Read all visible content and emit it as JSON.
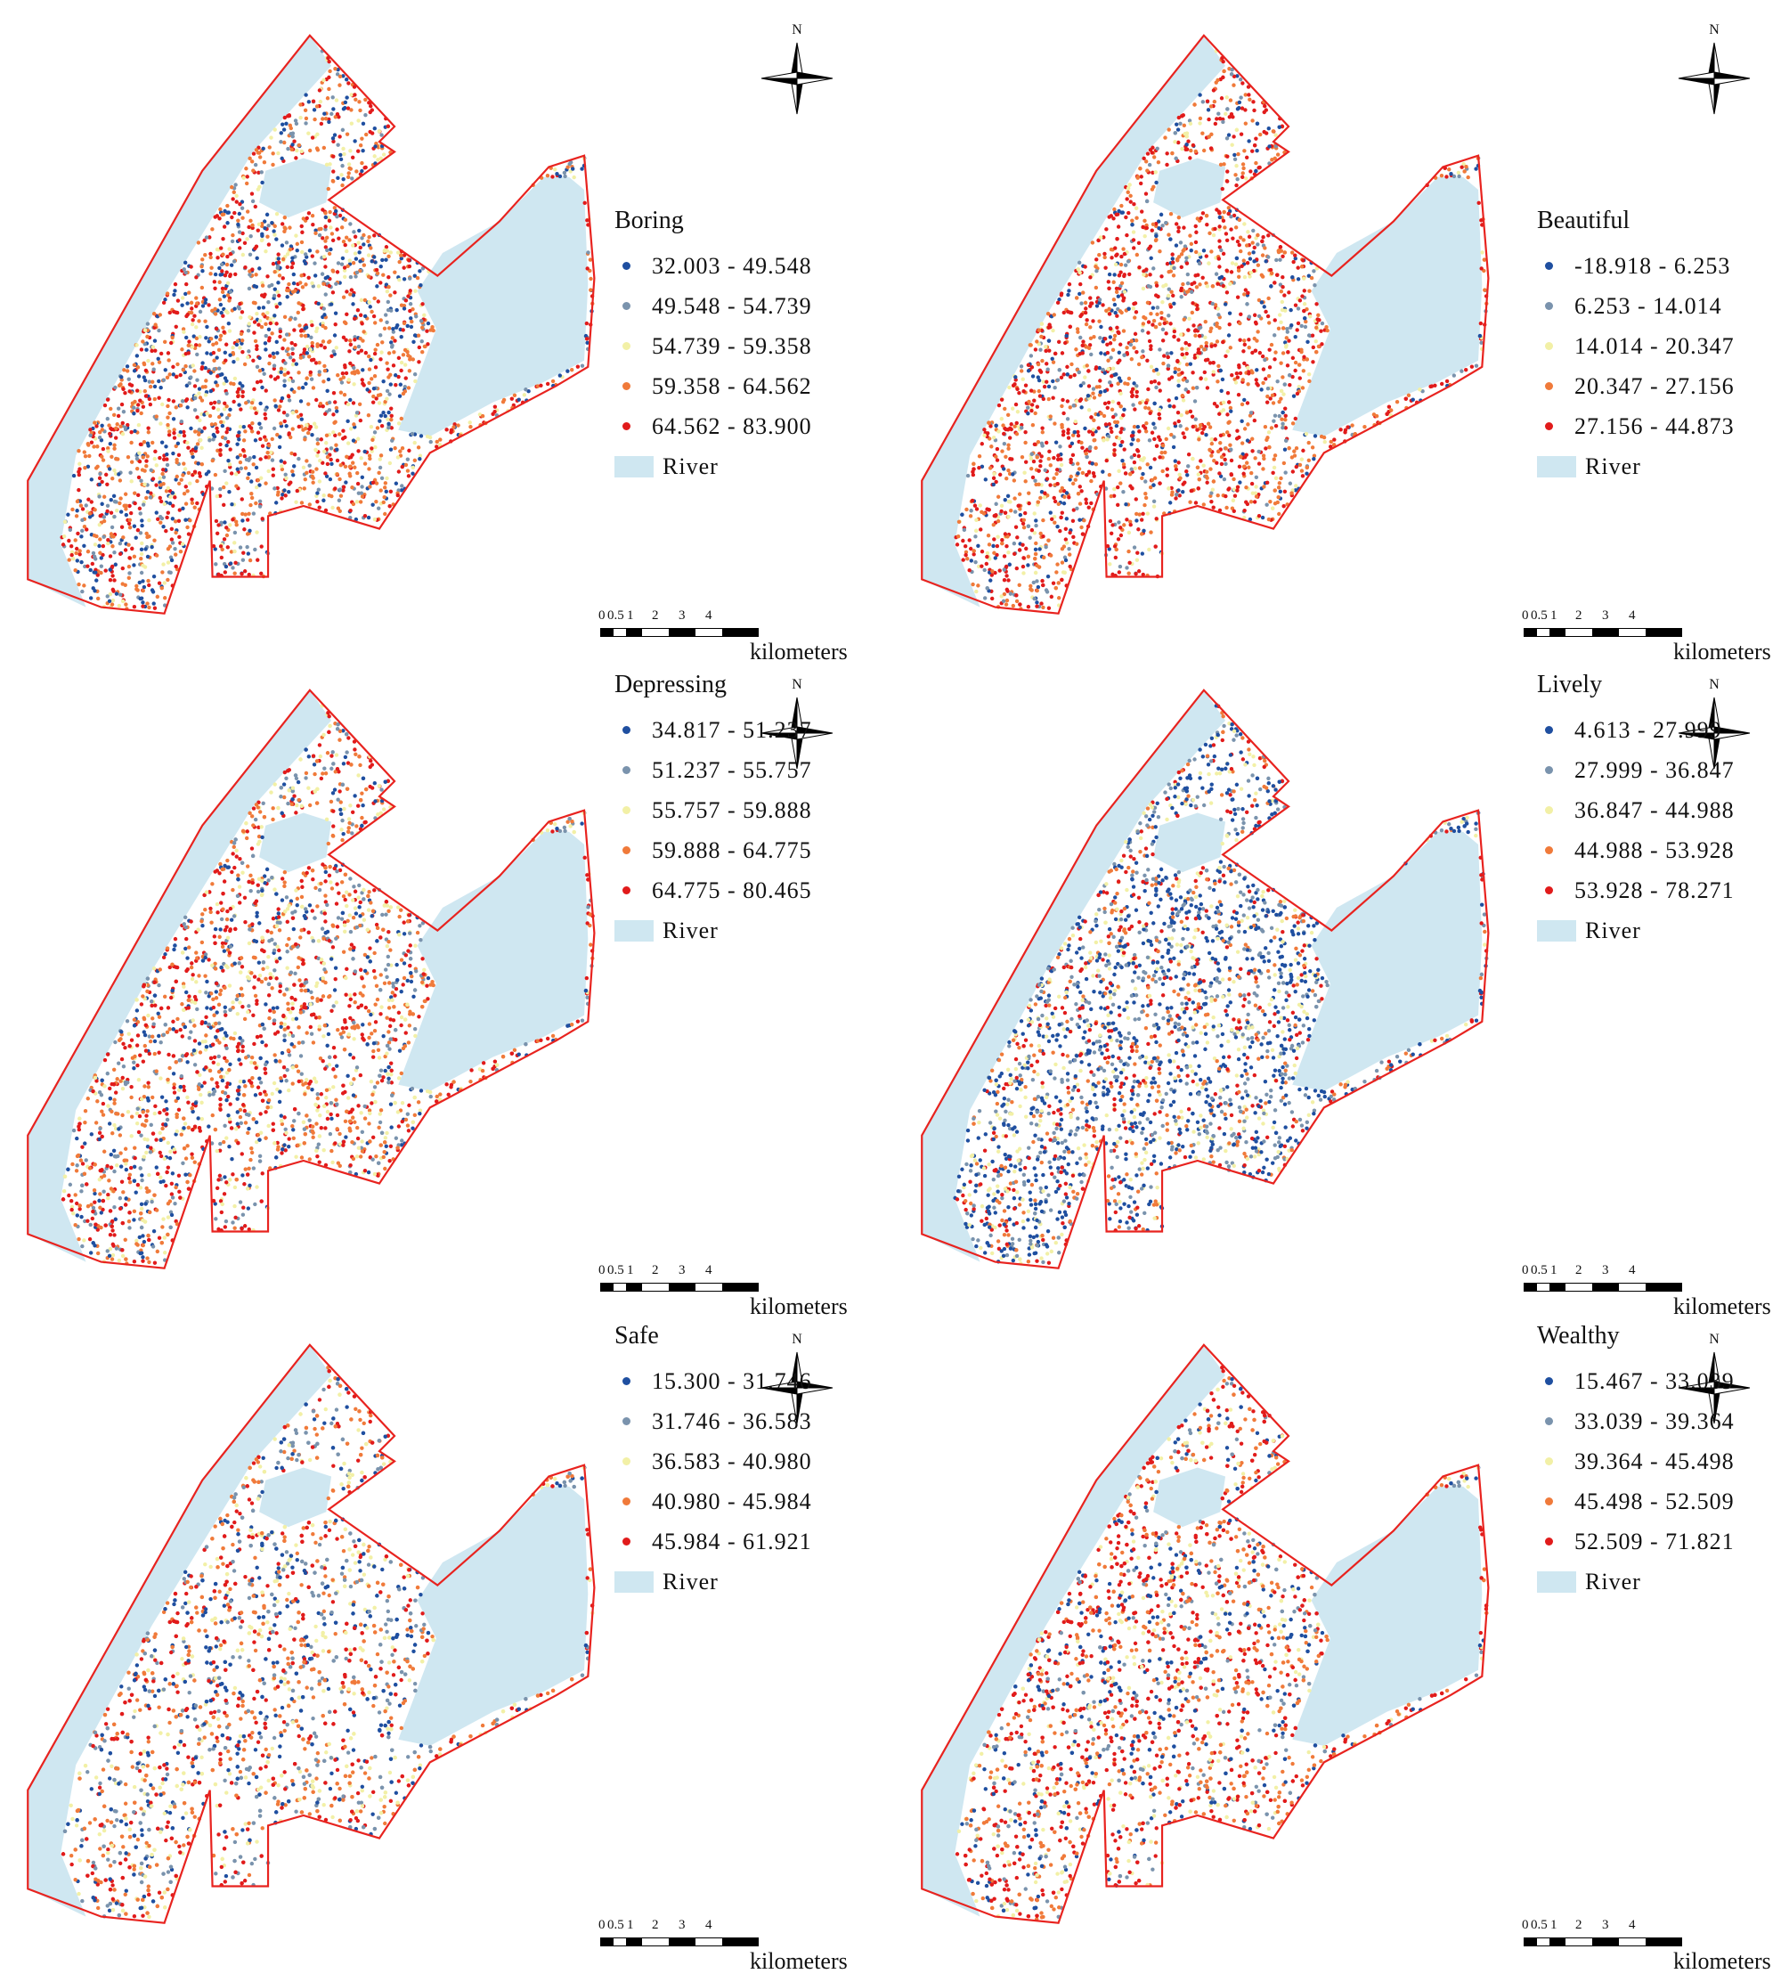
{
  "colors": {
    "river": "#cfe7f1",
    "boundary": "#e8231f",
    "classes": [
      "#1f4fa0",
      "#7a93ad",
      "#f2f0a6",
      "#f07a3a",
      "#e11b1b"
    ]
  },
  "north_label": "N",
  "scale": {
    "ticks": [
      "0",
      "0.5",
      "1",
      "2",
      "3",
      "4"
    ],
    "unit": "kilometers"
  },
  "panels": [
    {
      "title": "Boring",
      "river_label": "River",
      "classes": [
        "32.003 - 49.548",
        "49.548 - 54.739",
        "54.739 - 59.358",
        "59.358 - 64.562",
        "64.562 - 83.900"
      ]
    },
    {
      "title": "Beautiful",
      "river_label": "River",
      "classes": [
        "-18.918 - 6.253",
        "6.253 - 14.014",
        "14.014 - 20.347",
        "20.347 - 27.156",
        "27.156 - 44.873"
      ]
    },
    {
      "title": "Depressing",
      "river_label": "River",
      "classes": [
        "34.817 - 51.237",
        "51.237 - 55.757",
        "55.757 - 59.888",
        "59.888 - 64.775",
        "64.775 - 80.465"
      ]
    },
    {
      "title": "Lively",
      "river_label": "River",
      "classes": [
        "4.613 - 27.999",
        "27.999 - 36.847",
        "36.847 - 44.988",
        "44.988 - 53.928",
        "53.928 - 78.271"
      ]
    },
    {
      "title": "Safe",
      "river_label": "River",
      "classes": [
        "15.300 - 31.746",
        "31.746 - 36.583",
        "36.583 - 40.980",
        "40.980 - 45.984",
        "45.984 - 61.921"
      ]
    },
    {
      "title": "Wealthy",
      "river_label": "River",
      "classes": [
        "15.467 - 33.039",
        "33.039 - 39.364",
        "39.364 - 45.498",
        "45.498 - 52.509",
        "52.509 - 71.821"
      ]
    }
  ]
}
